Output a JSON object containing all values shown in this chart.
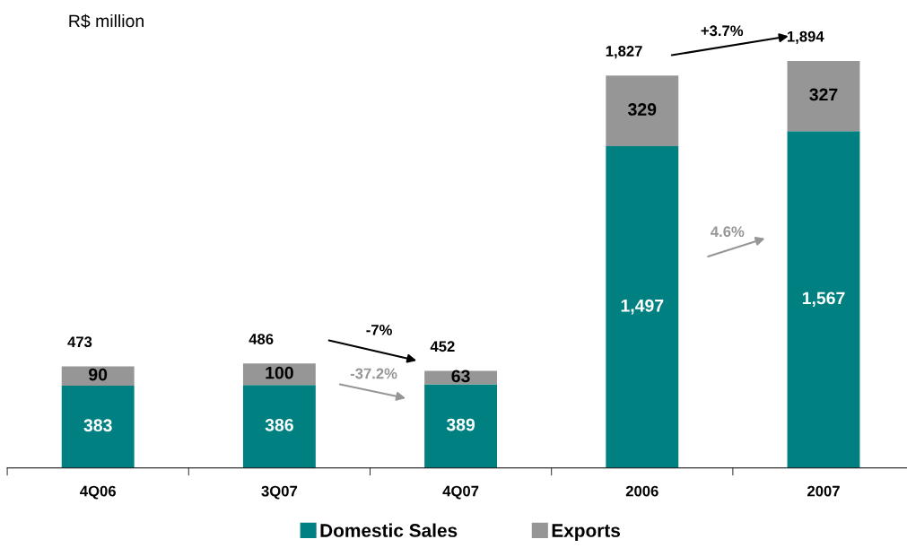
{
  "chart_data": {
    "type": "bar",
    "stacked": true,
    "categories": [
      "4Q06",
      "3Q07",
      "4Q07",
      "2006",
      "2007"
    ],
    "series": [
      {
        "name": "Domestic Sales",
        "color": "#008080",
        "values": [
          383,
          386,
          389,
          1497,
          1567
        ],
        "value_labels": [
          "383",
          "386",
          "389",
          "1,497",
          "1,567"
        ]
      },
      {
        "name": "Exports",
        "color": "#969696",
        "values": [
          90,
          100,
          63,
          329,
          327
        ],
        "value_labels": [
          "90",
          "100",
          "63",
          "329",
          "327"
        ]
      }
    ],
    "totals": [
      "473",
      "486",
      "452",
      "1,827",
      "1,894"
    ],
    "annotations": [
      "R$ million",
      "-7%",
      "-37.2%",
      "+3.7%",
      "4.6%"
    ],
    "legend": "bottom",
    "grid": false,
    "tick_labels": "x"
  }
}
